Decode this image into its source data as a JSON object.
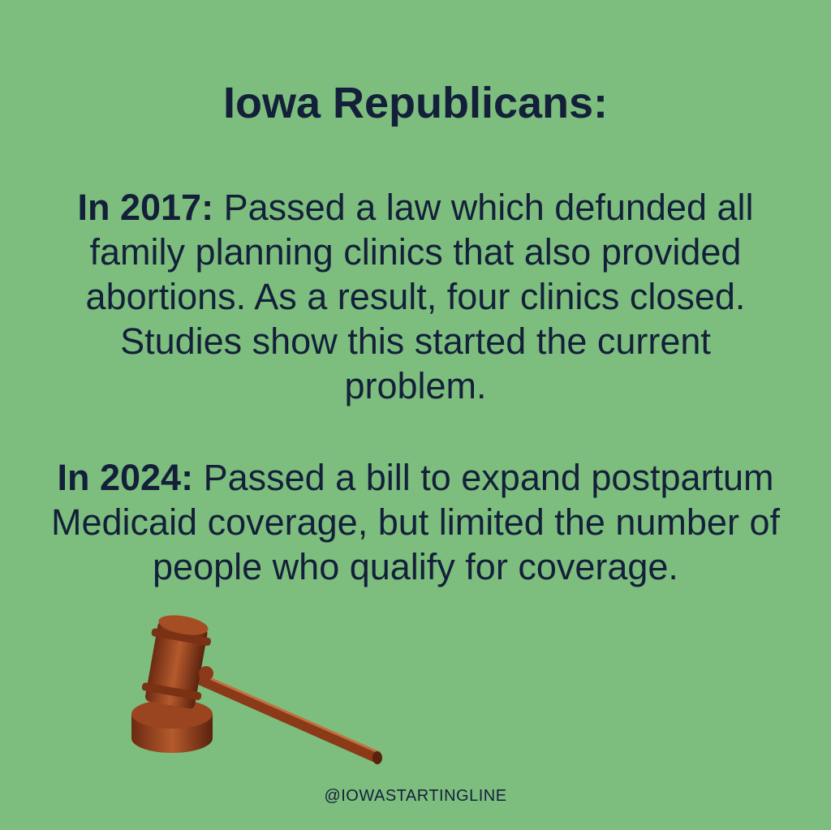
{
  "header": {
    "title": "Iowa Republicans:"
  },
  "paragraphs": [
    {
      "lead": "In 2017:",
      "text": "Passed a law which defunded all family planning clinics that also provided abortions. As a result, four clinics closed. Studies show this started the current problem."
    },
    {
      "lead": "In 2024:",
      "text": "Passed a bill to expand postpartum Medicaid coverage, but limited the number of people who qualify for coverage."
    }
  ],
  "footer": {
    "handle": "@IOWASTARTINGLINE"
  }
}
